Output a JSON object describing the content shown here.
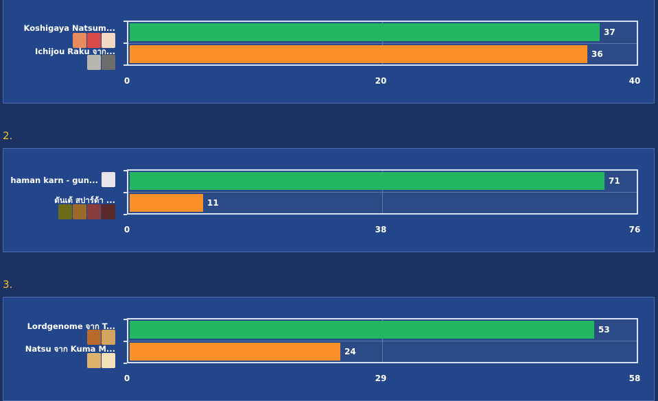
{
  "sections": [
    {
      "number": "",
      "ticks": [
        "0",
        "20",
        "40"
      ],
      "max": 40,
      "items": [
        {
          "label": "Koshigaya Natsum...",
          "value": 37,
          "value_label": "37",
          "color": "#23b762",
          "thumbs": [
            "#e88b5c",
            "#d94a4a",
            "#f1d9c4"
          ]
        },
        {
          "label": "Ichijou Raku จาก...",
          "value": 36,
          "value_label": "36",
          "color": "#fb8f2a",
          "thumbs": [
            "#b8b6ad",
            "#6d6d6d"
          ]
        }
      ]
    },
    {
      "number": "2.",
      "ticks": [
        "0",
        "38",
        "76"
      ],
      "max": 76,
      "items": [
        {
          "label": "haman karn - gun...",
          "value": 71,
          "value_label": "71",
          "color": "#23b762",
          "thumbs": [
            "#e9e3ea"
          ]
        },
        {
          "label": "ดันเต้ สปาร์ด้า ...",
          "value": 11,
          "value_label": "11",
          "color": "#fb8f2a",
          "thumbs": [
            "#6b6b18",
            "#9b6a2a",
            "#8a3b3b",
            "#5a2a2a"
          ]
        }
      ]
    },
    {
      "number": "3.",
      "ticks": [
        "0",
        "29",
        "58"
      ],
      "max": 58,
      "items": [
        {
          "label": "Lordgenome จาก T...",
          "value": 53,
          "value_label": "53",
          "color": "#23b762",
          "thumbs": [
            "#b86a2c",
            "#d3a35f"
          ]
        },
        {
          "label": "Natsu จาก Kuma M...",
          "value": 24,
          "value_label": "24",
          "color": "#fb8f2a",
          "thumbs": [
            "#e0b36d",
            "#f2e0b7"
          ]
        }
      ]
    }
  ],
  "chart_data": [
    {
      "type": "bar",
      "orientation": "horizontal",
      "categories": [
        "Koshigaya Natsum...",
        "Ichijou Raku จาก..."
      ],
      "values": [
        37,
        36
      ],
      "xlim": [
        0,
        40
      ],
      "tick_labels": [
        "0",
        "20",
        "40"
      ]
    },
    {
      "type": "bar",
      "orientation": "horizontal",
      "categories": [
        "haman karn - gun...",
        "ดันเต้ สปาร์ด้า ..."
      ],
      "values": [
        71,
        11
      ],
      "xlim": [
        0,
        76
      ],
      "tick_labels": [
        "0",
        "38",
        "76"
      ]
    },
    {
      "type": "bar",
      "orientation": "horizontal",
      "categories": [
        "Lordgenome จาก T...",
        "Natsu จาก Kuma M..."
      ],
      "values": [
        53,
        24
      ],
      "xlim": [
        0,
        58
      ],
      "tick_labels": [
        "0",
        "29",
        "58"
      ]
    }
  ]
}
